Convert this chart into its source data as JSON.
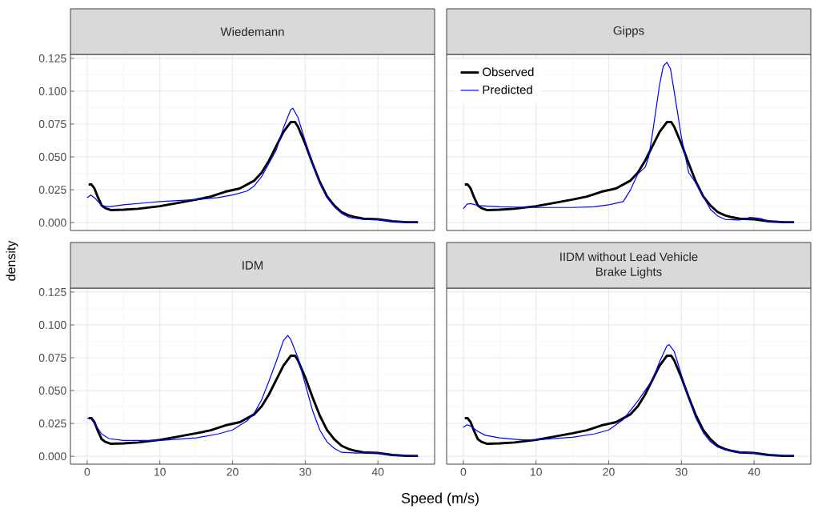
{
  "chart_data": [
    {
      "type": "line",
      "title": "Wiedemann",
      "ylabel": "density",
      "xlim": [
        -2.3,
        47.8
      ],
      "ylim": [
        -0.006,
        0.128
      ],
      "xticks": [
        0,
        10,
        20,
        30,
        40
      ],
      "yticks": [
        {
          "value": 0,
          "label": "0.000"
        },
        0.025,
        {
          "value": 0.05,
          "label": "0.050"
        },
        0.075,
        {
          "value": 0.1,
          "label": "0.100"
        },
        0.125
      ],
      "grid": true,
      "tick_labels": "y",
      "series": [
        {
          "color": "#000000",
          "x": [
            0.2,
            0.6,
            1,
            1.5,
            2,
            2.5,
            3.3,
            5,
            7,
            10,
            12,
            15,
            17,
            19,
            21,
            23,
            24,
            25,
            26,
            27,
            28,
            28.6,
            29,
            30,
            31,
            32,
            33,
            34,
            35,
            36,
            37,
            38,
            40,
            42,
            44,
            45.5
          ],
          "values": [
            0.029,
            0.029,
            0.026,
            0.019,
            0.013,
            0.011,
            0.0095,
            0.0098,
            0.0105,
            0.0125,
            0.0145,
            0.0175,
            0.0198,
            0.0235,
            0.026,
            0.032,
            0.038,
            0.047,
            0.058,
            0.069,
            0.0765,
            0.0765,
            0.073,
            0.06,
            0.045,
            0.031,
            0.02,
            0.013,
            0.008,
            0.0055,
            0.004,
            0.003,
            0.0025,
            0.001,
            0.0003,
            0.0003
          ]
        },
        {
          "color": "#0000ff",
          "x": [
            0,
            0.5,
            1,
            2,
            3,
            5,
            8,
            10,
            15,
            18,
            20,
            22,
            23,
            24,
            25,
            26,
            27,
            28,
            28.3,
            29,
            30,
            31,
            32,
            33,
            34,
            35,
            36,
            38,
            40,
            42,
            45.5
          ],
          "values": [
            0.019,
            0.021,
            0.019,
            0.013,
            0.012,
            0.0135,
            0.015,
            0.016,
            0.0175,
            0.019,
            0.021,
            0.024,
            0.028,
            0.035,
            0.045,
            0.055,
            0.072,
            0.086,
            0.087,
            0.08,
            0.062,
            0.045,
            0.03,
            0.019,
            0.012,
            0.007,
            0.004,
            0.0025,
            0.0023,
            0.0008,
            0.0002
          ]
        }
      ]
    },
    {
      "type": "line",
      "title": "Gipps",
      "xlim": [
        -2.3,
        47.8
      ],
      "ylim": [
        -0.006,
        0.128
      ],
      "xticks": [
        0,
        10,
        20,
        30,
        40
      ],
      "yticks": [
        0,
        0.025,
        0.05,
        0.075,
        0.1,
        0.125
      ],
      "grid": true,
      "tick_labels": false,
      "legend": "top left",
      "series": [
        {
          "name": "Observed",
          "color": "#000000",
          "x": [
            0.2,
            0.6,
            1,
            1.5,
            2,
            2.5,
            3.3,
            5,
            7,
            10,
            12,
            15,
            17,
            19,
            21,
            23,
            24,
            25,
            26,
            27,
            28,
            28.6,
            29,
            30,
            31,
            32,
            33,
            34,
            35,
            36,
            37,
            38,
            40,
            42,
            44,
            45.5
          ],
          "values": [
            0.029,
            0.029,
            0.026,
            0.019,
            0.013,
            0.011,
            0.0095,
            0.0098,
            0.0105,
            0.0125,
            0.0145,
            0.0175,
            0.0198,
            0.0235,
            0.026,
            0.032,
            0.038,
            0.047,
            0.058,
            0.069,
            0.0765,
            0.0765,
            0.073,
            0.06,
            0.045,
            0.031,
            0.02,
            0.013,
            0.008,
            0.0055,
            0.004,
            0.003,
            0.0025,
            0.001,
            0.0003,
            0.0003
          ]
        },
        {
          "name": "Predicted",
          "color": "#0000ff",
          "x": [
            0,
            0.5,
            1,
            2,
            5,
            10,
            15,
            18,
            20,
            22,
            23,
            24,
            25,
            25.5,
            26,
            27,
            27.5,
            28,
            28.5,
            29,
            30,
            31,
            32,
            33,
            34,
            35,
            36,
            38,
            39.5,
            41,
            42,
            45.5
          ],
          "values": [
            0.0105,
            0.014,
            0.0145,
            0.013,
            0.012,
            0.0115,
            0.0115,
            0.012,
            0.0135,
            0.016,
            0.025,
            0.037,
            0.042,
            0.05,
            0.067,
            0.105,
            0.119,
            0.122,
            0.117,
            0.1,
            0.065,
            0.038,
            0.03,
            0.02,
            0.01,
            0.005,
            0.0025,
            0.002,
            0.004,
            0.003,
            0.001,
            0.0002
          ]
        }
      ]
    },
    {
      "type": "line",
      "title": "IDM",
      "xlabel": "Speed (m/s)",
      "xlim": [
        -2.3,
        47.8
      ],
      "ylim": [
        -0.006,
        0.128
      ],
      "xticks": [
        0,
        10,
        20,
        30,
        40
      ],
      "yticks": [
        {
          "value": 0,
          "label": "0.000"
        },
        0.025,
        {
          "value": 0.05,
          "label": "0.050"
        },
        0.075,
        {
          "value": 0.1,
          "label": "0.100"
        },
        0.125
      ],
      "grid": true,
      "series": [
        {
          "color": "#000000",
          "x": [
            0.2,
            0.6,
            1,
            1.5,
            2,
            2.5,
            3.3,
            5,
            7,
            10,
            12,
            15,
            17,
            19,
            21,
            23,
            24,
            25,
            26,
            27,
            28,
            28.6,
            29,
            30,
            31,
            32,
            33,
            34,
            35,
            36,
            37,
            38,
            40,
            42,
            44,
            45.5
          ],
          "values": [
            0.029,
            0.029,
            0.026,
            0.019,
            0.013,
            0.011,
            0.0095,
            0.0098,
            0.0105,
            0.0125,
            0.0145,
            0.0175,
            0.0198,
            0.0235,
            0.026,
            0.032,
            0.038,
            0.047,
            0.058,
            0.069,
            0.0765,
            0.0765,
            0.073,
            0.06,
            0.045,
            0.031,
            0.02,
            0.013,
            0.008,
            0.0055,
            0.004,
            0.003,
            0.0025,
            0.001,
            0.0003,
            0.0003
          ]
        },
        {
          "color": "#0000ff",
          "x": [
            0,
            0.5,
            1,
            2,
            3,
            5,
            10,
            15,
            18,
            20,
            22,
            23,
            24,
            25,
            26,
            27,
            27.6,
            28,
            29,
            30,
            31,
            32,
            33,
            34,
            35,
            37,
            39,
            40,
            42,
            45.5
          ],
          "values": [
            0.029,
            0.029,
            0.025,
            0.017,
            0.0135,
            0.012,
            0.012,
            0.014,
            0.017,
            0.02,
            0.027,
            0.033,
            0.043,
            0.057,
            0.072,
            0.088,
            0.092,
            0.089,
            0.075,
            0.055,
            0.035,
            0.02,
            0.011,
            0.006,
            0.003,
            0.0025,
            0.0028,
            0.0025,
            0.001,
            0.0002
          ]
        }
      ]
    },
    {
      "type": "line",
      "title": "IIDM without Lead Vehicle Brake Lights",
      "xlim": [
        -2.3,
        47.8
      ],
      "ylim": [
        -0.006,
        0.128
      ],
      "xticks": [
        0,
        10,
        20,
        30,
        40
      ],
      "yticks": [
        0,
        0.025,
        0.05,
        0.075,
        0.1,
        0.125
      ],
      "grid": true,
      "tick_labels": "x",
      "series": [
        {
          "color": "#000000",
          "x": [
            0.2,
            0.6,
            1,
            1.5,
            2,
            2.5,
            3.3,
            5,
            7,
            10,
            12,
            15,
            17,
            19,
            21,
            23,
            24,
            25,
            26,
            27,
            28,
            28.6,
            29,
            30,
            31,
            32,
            33,
            34,
            35,
            36,
            37,
            38,
            40,
            42,
            44,
            45.5
          ],
          "values": [
            0.029,
            0.029,
            0.026,
            0.019,
            0.013,
            0.011,
            0.0095,
            0.0098,
            0.0105,
            0.0125,
            0.0145,
            0.0175,
            0.0198,
            0.0235,
            0.026,
            0.032,
            0.038,
            0.047,
            0.058,
            0.069,
            0.0765,
            0.0765,
            0.073,
            0.06,
            0.045,
            0.031,
            0.02,
            0.013,
            0.008,
            0.0055,
            0.004,
            0.003,
            0.0025,
            0.001,
            0.0003,
            0.0003
          ]
        },
        {
          "color": "#0000ff",
          "x": [
            0,
            0.5,
            1,
            2,
            3,
            5,
            8,
            10,
            15,
            18,
            20,
            22,
            24,
            26,
            27,
            28,
            28.3,
            29,
            30,
            31,
            32,
            33,
            34,
            35,
            36,
            38,
            40,
            42,
            45.5
          ],
          "values": [
            0.022,
            0.024,
            0.023,
            0.019,
            0.016,
            0.014,
            0.0125,
            0.0125,
            0.0145,
            0.017,
            0.02,
            0.028,
            0.042,
            0.058,
            0.072,
            0.084,
            0.085,
            0.08,
            0.062,
            0.044,
            0.029,
            0.018,
            0.011,
            0.007,
            0.005,
            0.003,
            0.0025,
            0.001,
            0.0002
          ]
        }
      ]
    }
  ]
}
